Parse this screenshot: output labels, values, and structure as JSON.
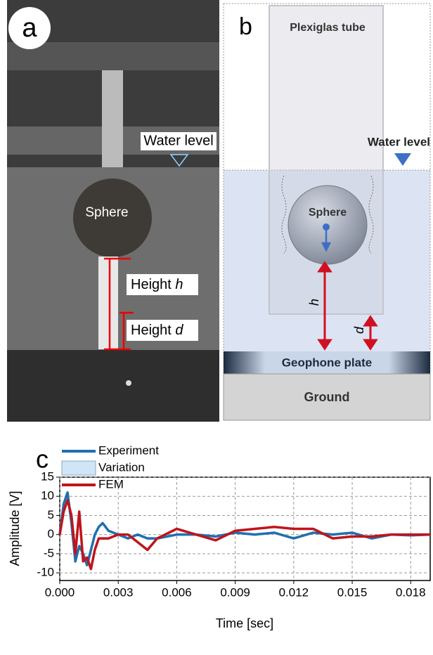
{
  "panel_a": {
    "label": "a",
    "water_level": "Water level",
    "sphere": "Sphere",
    "height_h": {
      "text": "Height",
      "var": "h"
    },
    "height_d": {
      "text": "Height",
      "var": "d"
    }
  },
  "panel_b": {
    "label": "b",
    "tube": "Plexiglas tube",
    "water_level": "Water level",
    "sphere": "Sphere",
    "h": "h",
    "d": "d",
    "plate": "Geophone plate",
    "ground": "Ground"
  },
  "chart_data": {
    "type": "line",
    "label": "c",
    "xlabel": "Time [sec]",
    "ylabel": "Amplitude [V]",
    "x": [
      0,
      0.0002,
      0.0004,
      0.0006,
      0.0008,
      0.001,
      0.0012,
      0.0014,
      0.0016,
      0.0018,
      0.002,
      0.0022,
      0.0025,
      0.003,
      0.0035,
      0.004,
      0.0045,
      0.005,
      0.006,
      0.007,
      0.008,
      0.009,
      0.01,
      0.011,
      0.012,
      0.013,
      0.014,
      0.015,
      0.016,
      0.017,
      0.018,
      0.019
    ],
    "series": [
      {
        "name": "Experiment",
        "color": "#1f6fb0",
        "values": [
          0,
          8,
          11,
          3,
          -7,
          -3,
          -5,
          -8,
          -4,
          0,
          2,
          3,
          1,
          0,
          -1,
          0,
          -1,
          -1,
          0,
          0,
          -0.5,
          0.5,
          0,
          0.5,
          -1,
          0.5,
          0,
          0.5,
          -1,
          0,
          -0.2,
          0
        ]
      },
      {
        "name": "Variation",
        "color": "#cfe6f7"
      },
      {
        "name": "FEM",
        "color": "#c0141c",
        "values": [
          0,
          6,
          9,
          5,
          -5,
          6,
          -7,
          -6,
          -9,
          -4,
          -1,
          -1,
          -1,
          0,
          0,
          -2,
          -4,
          -1,
          1.5,
          0,
          -1.5,
          1,
          1.5,
          2,
          1.5,
          1.5,
          -1,
          -0.5,
          -0.5,
          0,
          0,
          0
        ]
      }
    ],
    "xlim": [
      0,
      0.019
    ],
    "ylim": [
      -12,
      15
    ],
    "xticks": [
      {
        "value": 0,
        "label": "0.000"
      },
      {
        "value": 0.003,
        "label": "0.003"
      },
      {
        "value": 0.006,
        "label": "0.006"
      },
      {
        "value": 0.009,
        "label": "0.009"
      },
      {
        "value": 0.012,
        "label": "0.012"
      },
      {
        "value": 0.015,
        "label": "0.015"
      },
      {
        "value": 0.018,
        "label": "0.018"
      }
    ],
    "yticks": [
      15,
      10,
      5,
      0,
      -5,
      -10
    ],
    "grid": true
  }
}
